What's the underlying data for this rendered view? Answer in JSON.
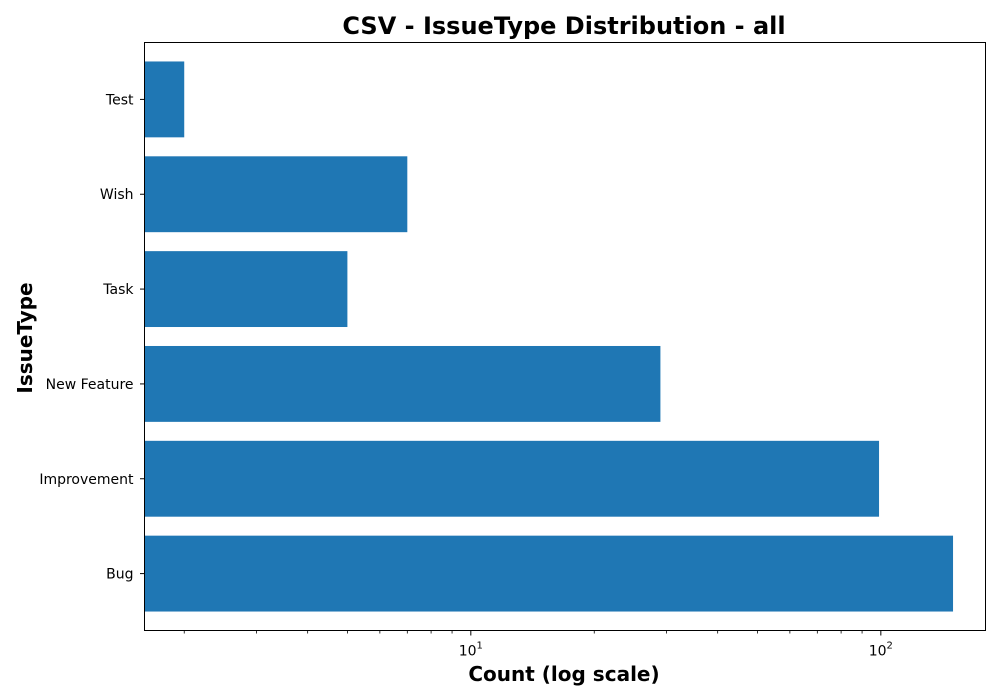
{
  "chart_data": {
    "type": "bar",
    "orientation": "horizontal",
    "title": "CSV - IssueType Distribution - all",
    "xlabel": "Count (log scale)",
    "ylabel": "IssueType",
    "x_scale": "log",
    "xlim": [
      1.6,
      180
    ],
    "categories": [
      "Bug",
      "Improvement",
      "New Feature",
      "Task",
      "Wish",
      "Test"
    ],
    "values": [
      150,
      99,
      29,
      5,
      7,
      2
    ],
    "x_major_ticks": [
      {
        "value": 10,
        "base": "10",
        "exp": "1"
      },
      {
        "value": 100,
        "base": "10",
        "exp": "2"
      }
    ],
    "bar_color": "#1f77b4",
    "grid": false,
    "legend": "none"
  }
}
